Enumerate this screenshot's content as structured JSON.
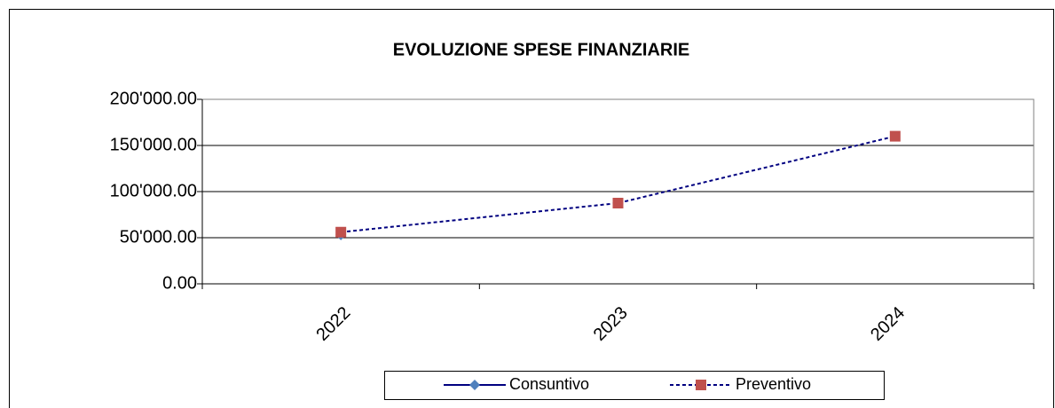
{
  "chart_data": {
    "type": "line",
    "title": "EVOLUZIONE SPESE FINANZIARIE",
    "categories": [
      "2022",
      "2023",
      "2024"
    ],
    "series": [
      {
        "name": "Consuntivo",
        "color": "#000080",
        "marker_color": "#4f81bd",
        "marker": "diamond",
        "dash": false,
        "values": [
          53000,
          null,
          null
        ]
      },
      {
        "name": "Preventivo",
        "color": "#000080",
        "marker_color": "#c0504d",
        "marker": "square",
        "dash": true,
        "values": [
          56000,
          87500,
          160000
        ]
      }
    ],
    "ylim": [
      0,
      200000
    ],
    "yticks": [
      {
        "value": 0,
        "label": "0.00"
      },
      {
        "value": 50000,
        "label": "50'000.00"
      },
      {
        "value": 100000,
        "label": "100'000.00"
      },
      {
        "value": 150000,
        "label": "150'000.00"
      },
      {
        "value": 200000,
        "label": "200'000.00"
      }
    ],
    "grid": true,
    "legend": "bottom"
  }
}
